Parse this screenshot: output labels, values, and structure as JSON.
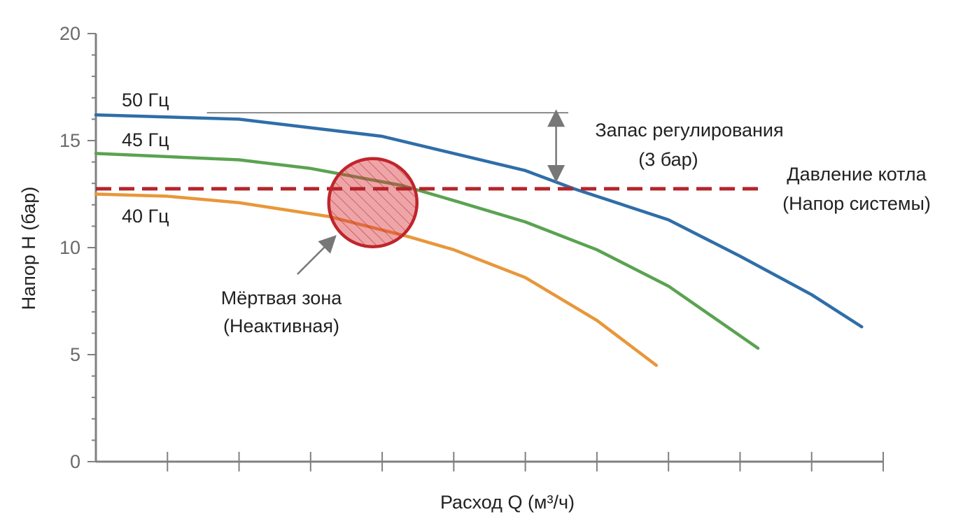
{
  "chart_data": {
    "type": "line",
    "title": "",
    "xlabel": "Расход Q (м³/ч)",
    "ylabel": "Напор H (бар)",
    "ylim": [
      0,
      20
    ],
    "yticks": [
      0,
      5,
      10,
      15,
      20
    ],
    "xlim": [
      0,
      11
    ],
    "xticks_count": 11,
    "x_tick_labels_shown": false,
    "grid": false,
    "series": [
      {
        "name": "50 Гц",
        "color": "#2f6ea8",
        "x": [
          0,
          2,
          4,
          6,
          6.68,
          8,
          9,
          10,
          10.7
        ],
        "y": [
          16.2,
          16.0,
          15.2,
          13.6,
          12.75,
          11.3,
          9.6,
          7.8,
          6.3
        ]
      },
      {
        "name": "45 Гц",
        "color": "#5aa351",
        "x": [
          0,
          2,
          3,
          4.28,
          5,
          6,
          7,
          8,
          9.25
        ],
        "y": [
          14.4,
          14.1,
          13.7,
          12.9,
          12.2,
          11.2,
          9.9,
          8.2,
          5.3
        ]
      },
      {
        "name": "40 Гц",
        "color": "#e8973a",
        "x": [
          0,
          1,
          2,
          3.26,
          4.38,
          5,
          6,
          7,
          7.83
        ],
        "y": [
          12.5,
          12.4,
          12.1,
          11.45,
          10.5,
          9.9,
          8.6,
          6.6,
          4.5
        ]
      }
    ],
    "system_pressure": {
      "value": 12.75,
      "x_end": 9.27,
      "color": "#b5242a",
      "label_line1": "Давление котла",
      "label_line2": "(Напор системы)"
    },
    "reference_line": {
      "value": 16.3,
      "x_start": 1.55,
      "x_end": 6.6
    },
    "margin_annotation": {
      "from": 16.25,
      "to": 13.25,
      "x": 6.43,
      "label_line1": "Запас регулирования",
      "label_line2": "(3 бар)"
    },
    "dead_zone": {
      "x": 3.87,
      "y": 12.1,
      "color": "#d9373f",
      "label_line1": "Мёртвая зона",
      "label_line2": "(Неактивная)"
    }
  }
}
